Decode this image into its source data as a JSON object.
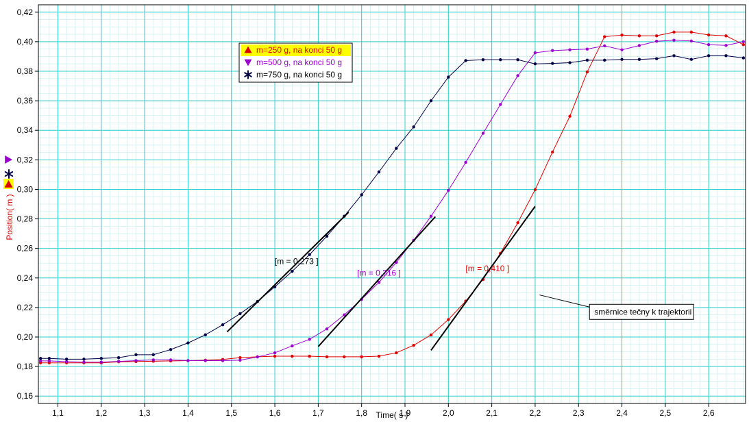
{
  "chart_data": {
    "type": "line",
    "xlabel": "Time( s )",
    "ylabel": "Position( m )",
    "xlim": [
      1.055,
      2.685
    ],
    "ylim": [
      0.155,
      0.425
    ],
    "x_ticks": [
      1.1,
      1.2,
      1.3,
      1.4,
      1.5,
      1.6,
      1.7,
      1.8,
      1.9,
      2.0,
      2.1,
      2.2,
      2.3,
      2.4,
      2.5,
      2.6
    ],
    "x_tick_labels": [
      "1,1",
      "1,2",
      "1,3",
      "1,4",
      "1,5",
      "1,6",
      "1,7",
      "1,8",
      "1,9",
      "2,0",
      "2,1",
      "2,2",
      "2,3",
      "2,4",
      "2,5",
      "2,6"
    ],
    "y_ticks": [
      0.16,
      0.18,
      0.2,
      0.22,
      0.24,
      0.26,
      0.28,
      0.3,
      0.32,
      0.34,
      0.36,
      0.38,
      0.4,
      0.42
    ],
    "y_tick_labels": [
      "0,16",
      "0,18",
      "0,20",
      "0,22",
      "0,24",
      "0,26",
      "0,28",
      "0,30",
      "0,32",
      "0,34",
      "0,36",
      "0,38",
      "0,40",
      "0,42"
    ],
    "grid": true,
    "legend_position": "top-left",
    "colors": {
      "major_grid": "#33cccc",
      "minor_grid": "#d6f2f2",
      "m250": "#dd0000",
      "m500": "#9900cc",
      "m750": "#000044",
      "tangent": "#000000",
      "legend_highlight": "#ffff00"
    },
    "series": [
      {
        "name": "m=250 g, na konci 50 g",
        "key": "m250",
        "marker": "triangle-up",
        "x": [
          1.06,
          1.08,
          1.12,
          1.16,
          1.2,
          1.24,
          1.28,
          1.32,
          1.36,
          1.4,
          1.44,
          1.48,
          1.52,
          1.56,
          1.6,
          1.64,
          1.68,
          1.72,
          1.76,
          1.8,
          1.84,
          1.88,
          1.92,
          1.96,
          2.0,
          2.04,
          2.08,
          2.12,
          2.16,
          2.2,
          2.24,
          2.28,
          2.32,
          2.36,
          2.4,
          2.44,
          2.48,
          2.52,
          2.56,
          2.6,
          2.64,
          2.68
        ],
        "values": [
          0.1825,
          0.1825,
          0.1825,
          0.1825,
          0.1825,
          0.1832,
          0.1834,
          0.1836,
          0.1838,
          0.184,
          0.1843,
          0.1848,
          0.186,
          0.1866,
          0.187,
          0.187,
          0.187,
          0.1866,
          0.1866,
          0.1866,
          0.187,
          0.1893,
          0.1944,
          0.2014,
          0.2118,
          0.2243,
          0.239,
          0.2567,
          0.2774,
          0.2998,
          0.3253,
          0.3495,
          0.3795,
          0.4034,
          0.4045,
          0.404,
          0.404,
          0.4065,
          0.4065,
          0.4046,
          0.404,
          0.398
        ]
      },
      {
        "name": "m=500 g, na konci 50 g",
        "key": "m500",
        "marker": "triangle-down",
        "x": [
          1.06,
          1.08,
          1.12,
          1.16,
          1.2,
          1.24,
          1.28,
          1.32,
          1.36,
          1.4,
          1.44,
          1.48,
          1.52,
          1.56,
          1.6,
          1.64,
          1.68,
          1.72,
          1.76,
          1.8,
          1.84,
          1.88,
          1.92,
          1.96,
          2.0,
          2.04,
          2.08,
          2.12,
          2.16,
          2.2,
          2.24,
          2.28,
          2.32,
          2.36,
          2.4,
          2.44,
          2.48,
          2.52,
          2.56,
          2.6,
          2.64,
          2.68
        ],
        "values": [
          0.1838,
          0.1838,
          0.1833,
          0.183,
          0.183,
          0.1835,
          0.184,
          0.1845,
          0.1845,
          0.184,
          0.184,
          0.184,
          0.1843,
          0.1865,
          0.1893,
          0.194,
          0.1984,
          0.2055,
          0.215,
          0.2255,
          0.237,
          0.2505,
          0.2655,
          0.2818,
          0.2993,
          0.3183,
          0.338,
          0.3575,
          0.377,
          0.3925,
          0.394,
          0.3945,
          0.395,
          0.3972,
          0.3945,
          0.3974,
          0.4003,
          0.401,
          0.4005,
          0.398,
          0.3975,
          0.4
        ]
      },
      {
        "name": "m=750 g, na konci 50 g",
        "key": "m750",
        "marker": "asterisk",
        "x": [
          1.06,
          1.08,
          1.12,
          1.16,
          1.2,
          1.24,
          1.28,
          1.32,
          1.36,
          1.4,
          1.44,
          1.48,
          1.52,
          1.56,
          1.6,
          1.64,
          1.68,
          1.72,
          1.76,
          1.8,
          1.84,
          1.88,
          1.92,
          1.96,
          2.0,
          2.04,
          2.08,
          2.12,
          2.16,
          2.2,
          2.24,
          2.28,
          2.32,
          2.36,
          2.4,
          2.44,
          2.48,
          2.52,
          2.56,
          2.6,
          2.64,
          2.68
        ],
        "values": [
          0.1855,
          0.1855,
          0.185,
          0.185,
          0.1855,
          0.186,
          0.188,
          0.188,
          0.1915,
          0.196,
          0.2015,
          0.2083,
          0.2158,
          0.2241,
          0.234,
          0.2445,
          0.2558,
          0.2683,
          0.2818,
          0.2963,
          0.3118,
          0.3278,
          0.3423,
          0.36,
          0.376,
          0.3872,
          0.3878,
          0.3878,
          0.3878,
          0.385,
          0.3853,
          0.3858,
          0.3875,
          0.3875,
          0.388,
          0.388,
          0.3885,
          0.3905,
          0.388,
          0.3905,
          0.3905,
          0.389
        ]
      }
    ],
    "tangents": [
      {
        "label": "[m = 0,273 ]",
        "key": "m750",
        "slope": 0.273,
        "x": [
          1.49,
          1.77
        ],
        "y": [
          0.2035,
          0.2845
        ],
        "label_at": [
          1.65,
          0.2495
        ]
      },
      {
        "label": "[m = 0,316 ]",
        "key": "m500",
        "slope": 0.316,
        "x": [
          1.7,
          1.97
        ],
        "y": [
          0.1935,
          0.2815
        ],
        "label_at": [
          1.84,
          0.2415
        ]
      },
      {
        "label": "[m = 0,410 ]",
        "key": "m250",
        "slope": 0.41,
        "x": [
          1.96,
          2.2
        ],
        "y": [
          0.191,
          0.2885
        ],
        "label_at": [
          2.09,
          0.2445
        ]
      }
    ],
    "annotation": {
      "text": "směrnice tečny k trajektorii",
      "pointer_from": [
        2.21,
        0.2285
      ],
      "box_at": [
        2.33,
        0.2175
      ]
    }
  }
}
